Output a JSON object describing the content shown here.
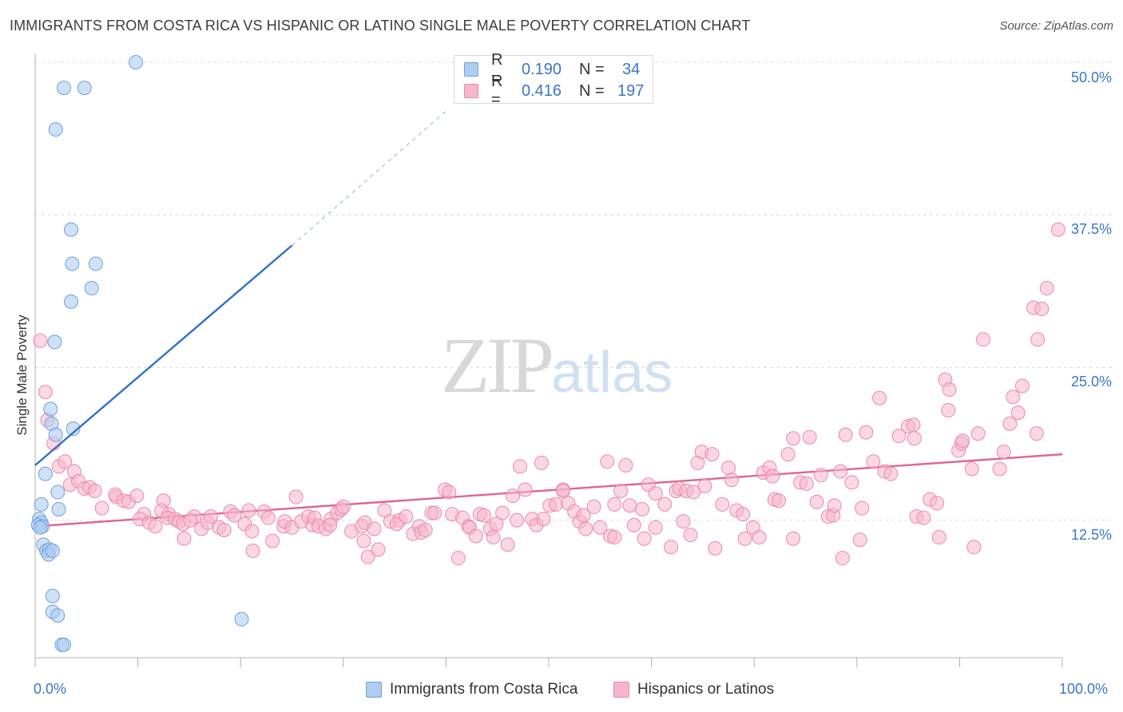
{
  "header": {
    "title": "IMMIGRANTS FROM COSTA RICA VS HISPANIC OR LATINO SINGLE MALE POVERTY CORRELATION CHART",
    "source": "Source: ZipAtlas.com"
  },
  "watermark": {
    "zip": "ZIP",
    "atlas": "atlas"
  },
  "stats": [
    {
      "r_label": "R =",
      "r_value": "0.190",
      "n_label": "N =",
      "n_value": "34"
    },
    {
      "r_label": "R =",
      "r_value": "0.416",
      "n_label": "N =",
      "n_value": "197"
    }
  ],
  "legend": [
    {
      "label": "Immigrants from Costa Rica"
    },
    {
      "label": "Hispanics or Latinos"
    }
  ],
  "colors": {
    "blue_fill": "#aecdf2",
    "blue_stroke": "#6fa0dc",
    "blue_line": "#2f6fcc",
    "pink_fill": "#f5b6cb",
    "pink_stroke": "#e98aab",
    "pink_line": "#e0648f",
    "grid": "#dcdcdc",
    "axis": "#b0b0b0"
  },
  "chart_data": {
    "type": "scatter",
    "xlabel": "",
    "ylabel": "Single Male Poverty",
    "xlim": [
      0,
      100
    ],
    "ylim": [
      0,
      50
    ],
    "x_ticks": [
      "0.0%",
      "100.0%"
    ],
    "y_ticks": [
      "12.5%",
      "25.0%",
      "37.5%",
      "50.0%"
    ],
    "y_tick_values": [
      12.5,
      25.0,
      37.5,
      50.0
    ],
    "grid": true,
    "series": [
      {
        "name": "Immigrants from Costa Rica",
        "points": [
          [
            9.8,
            50.0
          ],
          [
            2.8,
            47.9
          ],
          [
            4.8,
            47.9
          ],
          [
            2.0,
            44.5
          ],
          [
            3.5,
            36.3
          ],
          [
            3.6,
            33.5
          ],
          [
            5.9,
            33.5
          ],
          [
            5.5,
            31.5
          ],
          [
            3.5,
            30.4
          ],
          [
            1.9,
            27.1
          ],
          [
            1.5,
            21.6
          ],
          [
            1.6,
            20.4
          ],
          [
            3.7,
            20.0
          ],
          [
            2.0,
            19.5
          ],
          [
            1.0,
            16.3
          ],
          [
            2.2,
            14.8
          ],
          [
            0.6,
            13.8
          ],
          [
            2.3,
            13.4
          ],
          [
            0.4,
            12.6
          ],
          [
            0.6,
            12.3
          ],
          [
            0.3,
            12.1
          ],
          [
            0.7,
            12.0
          ],
          [
            0.5,
            11.9
          ],
          [
            0.8,
            10.5
          ],
          [
            1.1,
            10.0
          ],
          [
            1.4,
            10.1
          ],
          [
            1.3,
            9.7
          ],
          [
            1.7,
            10.0
          ],
          [
            1.7,
            6.3
          ],
          [
            1.7,
            5.0
          ],
          [
            2.2,
            4.7
          ],
          [
            2.6,
            2.3
          ],
          [
            2.8,
            2.3
          ],
          [
            20.1,
            4.4
          ]
        ],
        "trend": {
          "x": [
            0.0,
            25.0
          ],
          "y": [
            17.0,
            35.0
          ],
          "dashed_to": [
            40.0,
            46.0
          ]
        }
      },
      {
        "name": "Hispanics or Latinos",
        "points": [
          [
            0.5,
            27.2
          ],
          [
            1.0,
            23.0
          ],
          [
            1.2,
            20.7
          ],
          [
            1.8,
            18.8
          ],
          [
            2.3,
            16.9
          ],
          [
            2.9,
            17.3
          ],
          [
            3.8,
            16.5
          ],
          [
            3.4,
            15.4
          ],
          [
            4.2,
            15.7
          ],
          [
            4.8,
            15.1
          ],
          [
            5.3,
            15.2
          ],
          [
            6.5,
            13.5
          ],
          [
            5.8,
            14.9
          ],
          [
            7.9,
            14.4
          ],
          [
            7.8,
            14.6
          ],
          [
            8.6,
            14.1
          ],
          [
            9.1,
            14.0
          ],
          [
            9.9,
            14.5
          ],
          [
            10.6,
            13.0
          ],
          [
            10.2,
            12.6
          ],
          [
            11.1,
            12.3
          ],
          [
            11.7,
            12.0
          ],
          [
            12.5,
            14.1
          ],
          [
            13.0,
            13.0
          ],
          [
            12.3,
            13.3
          ],
          [
            12.9,
            12.7
          ],
          [
            13.6,
            12.6
          ],
          [
            14.0,
            12.4
          ],
          [
            14.4,
            12.2
          ],
          [
            15.5,
            12.8
          ],
          [
            15.1,
            12.5
          ],
          [
            14.5,
            11.0
          ],
          [
            16.2,
            11.8
          ],
          [
            16.8,
            12.3
          ],
          [
            17.1,
            12.8
          ],
          [
            17.9,
            11.9
          ],
          [
            18.4,
            11.7
          ],
          [
            19.0,
            13.2
          ],
          [
            19.4,
            12.9
          ],
          [
            20.4,
            12.2
          ],
          [
            20.8,
            13.3
          ],
          [
            21.1,
            11.6
          ],
          [
            21.2,
            10.0
          ],
          [
            22.3,
            13.2
          ],
          [
            22.7,
            12.7
          ],
          [
            23.1,
            10.8
          ],
          [
            24.2,
            12.0
          ],
          [
            24.3,
            12.4
          ],
          [
            25.0,
            11.9
          ],
          [
            25.4,
            14.4
          ],
          [
            25.9,
            12.4
          ],
          [
            26.6,
            12.8
          ],
          [
            27.0,
            12.1
          ],
          [
            27.2,
            12.7
          ],
          [
            27.6,
            12.0
          ],
          [
            28.3,
            11.8
          ],
          [
            28.8,
            12.6
          ],
          [
            29.4,
            13.1
          ],
          [
            28.7,
            12.1
          ],
          [
            29.8,
            13.4
          ],
          [
            30.0,
            13.6
          ],
          [
            30.8,
            11.6
          ],
          [
            31.8,
            12.0
          ],
          [
            32.0,
            10.8
          ],
          [
            32.4,
            9.5
          ],
          [
            32.1,
            12.3
          ],
          [
            33.4,
            10.1
          ],
          [
            33.0,
            11.8
          ],
          [
            34.0,
            13.3
          ],
          [
            34.6,
            12.4
          ],
          [
            35.5,
            12.5
          ],
          [
            35.2,
            12.2
          ],
          [
            36.1,
            12.8
          ],
          [
            36.8,
            11.4
          ],
          [
            37.4,
            12.0
          ],
          [
            37.6,
            11.5
          ],
          [
            38.0,
            11.7
          ],
          [
            38.6,
            13.1
          ],
          [
            38.9,
            13.1
          ],
          [
            39.9,
            15.0
          ],
          [
            40.3,
            14.8
          ],
          [
            40.6,
            13.0
          ],
          [
            41.2,
            9.4
          ],
          [
            41.6,
            12.7
          ],
          [
            42.2,
            12.0
          ],
          [
            42.3,
            11.9
          ],
          [
            42.9,
            11.2
          ],
          [
            43.3,
            13.0
          ],
          [
            43.7,
            12.9
          ],
          [
            44.3,
            11.8
          ],
          [
            44.6,
            11.1
          ],
          [
            44.9,
            12.2
          ],
          [
            45.5,
            13.1
          ],
          [
            46.0,
            10.5
          ],
          [
            46.5,
            14.5
          ],
          [
            46.9,
            12.5
          ],
          [
            47.2,
            16.9
          ],
          [
            47.7,
            15.0
          ],
          [
            48.4,
            12.6
          ],
          [
            48.8,
            12.1
          ],
          [
            49.3,
            17.2
          ],
          [
            49.5,
            12.6
          ],
          [
            50.1,
            13.7
          ],
          [
            50.7,
            13.8
          ],
          [
            51.4,
            15.0
          ],
          [
            51.4,
            14.9
          ],
          [
            51.9,
            13.9
          ],
          [
            52.5,
            13.2
          ],
          [
            53.0,
            12.4
          ],
          [
            53.4,
            12.9
          ],
          [
            53.6,
            11.8
          ],
          [
            54.4,
            13.6
          ],
          [
            55.0,
            11.9
          ],
          [
            55.7,
            17.3
          ],
          [
            56.0,
            11.2
          ],
          [
            56.4,
            11.1
          ],
          [
            56.4,
            13.8
          ],
          [
            57.5,
            17.0
          ],
          [
            57.0,
            14.9
          ],
          [
            57.9,
            13.7
          ],
          [
            58.3,
            12.1
          ],
          [
            59.1,
            13.4
          ],
          [
            59.7,
            15.4
          ],
          [
            59.3,
            11.0
          ],
          [
            60.4,
            14.7
          ],
          [
            60.4,
            11.9
          ],
          [
            61.3,
            13.8
          ],
          [
            61.9,
            10.3
          ],
          [
            62.4,
            14.9
          ],
          [
            62.7,
            15.1
          ],
          [
            63.1,
            12.4
          ],
          [
            63.8,
            11.3
          ],
          [
            63.4,
            14.9
          ],
          [
            64.1,
            14.8
          ],
          [
            64.5,
            17.2
          ],
          [
            64.9,
            18.1
          ],
          [
            65.2,
            15.3
          ],
          [
            65.9,
            17.9
          ],
          [
            66.2,
            10.2
          ],
          [
            66.9,
            13.8
          ],
          [
            67.5,
            16.8
          ],
          [
            67.8,
            15.8
          ],
          [
            68.3,
            13.3
          ],
          [
            68.9,
            13.0
          ],
          [
            69.1,
            11.0
          ],
          [
            69.9,
            11.9
          ],
          [
            70.5,
            11.1
          ],
          [
            70.9,
            16.4
          ],
          [
            71.5,
            16.8
          ],
          [
            71.8,
            16.1
          ],
          [
            72.0,
            14.2
          ],
          [
            72.4,
            14.1
          ],
          [
            73.3,
            17.9
          ],
          [
            73.8,
            11.0
          ],
          [
            73.8,
            19.2
          ],
          [
            74.5,
            15.6
          ],
          [
            75.1,
            15.5
          ],
          [
            75.4,
            19.3
          ],
          [
            76.1,
            14.0
          ],
          [
            76.5,
            16.2
          ],
          [
            77.2,
            12.8
          ],
          [
            77.7,
            12.9
          ],
          [
            77.8,
            13.7
          ],
          [
            78.6,
            9.4
          ],
          [
            78.4,
            16.5
          ],
          [
            78.9,
            19.5
          ],
          [
            79.5,
            15.6
          ],
          [
            80.3,
            10.9
          ],
          [
            80.5,
            13.5
          ],
          [
            80.9,
            19.7
          ],
          [
            81.6,
            17.3
          ],
          [
            82.2,
            22.5
          ],
          [
            82.7,
            16.5
          ],
          [
            83.3,
            16.3
          ],
          [
            84.1,
            19.4
          ],
          [
            85.0,
            20.2
          ],
          [
            85.5,
            20.3
          ],
          [
            85.8,
            12.8
          ],
          [
            85.6,
            19.2
          ],
          [
            86.5,
            12.7
          ],
          [
            87.1,
            14.2
          ],
          [
            87.8,
            13.9
          ],
          [
            88.0,
            11.1
          ],
          [
            88.6,
            24.0
          ],
          [
            88.9,
            21.5
          ],
          [
            89.0,
            23.2
          ],
          [
            89.9,
            18.2
          ],
          [
            90.2,
            18.8
          ],
          [
            90.3,
            19.0
          ],
          [
            91.2,
            16.7
          ],
          [
            91.4,
            10.3
          ],
          [
            91.8,
            19.6
          ],
          [
            92.3,
            27.3
          ],
          [
            93.9,
            16.7
          ],
          [
            94.3,
            18.1
          ],
          [
            94.9,
            20.4
          ],
          [
            95.2,
            22.6
          ],
          [
            95.7,
            21.3
          ],
          [
            96.1,
            23.5
          ],
          [
            97.2,
            29.9
          ],
          [
            97.6,
            27.3
          ],
          [
            97.5,
            19.6
          ],
          [
            98.0,
            29.8
          ],
          [
            98.5,
            31.5
          ],
          [
            99.6,
            36.3
          ]
        ],
        "trend": {
          "x": [
            0.0,
            100.0
          ],
          "y": [
            12.0,
            17.9
          ]
        }
      }
    ]
  }
}
